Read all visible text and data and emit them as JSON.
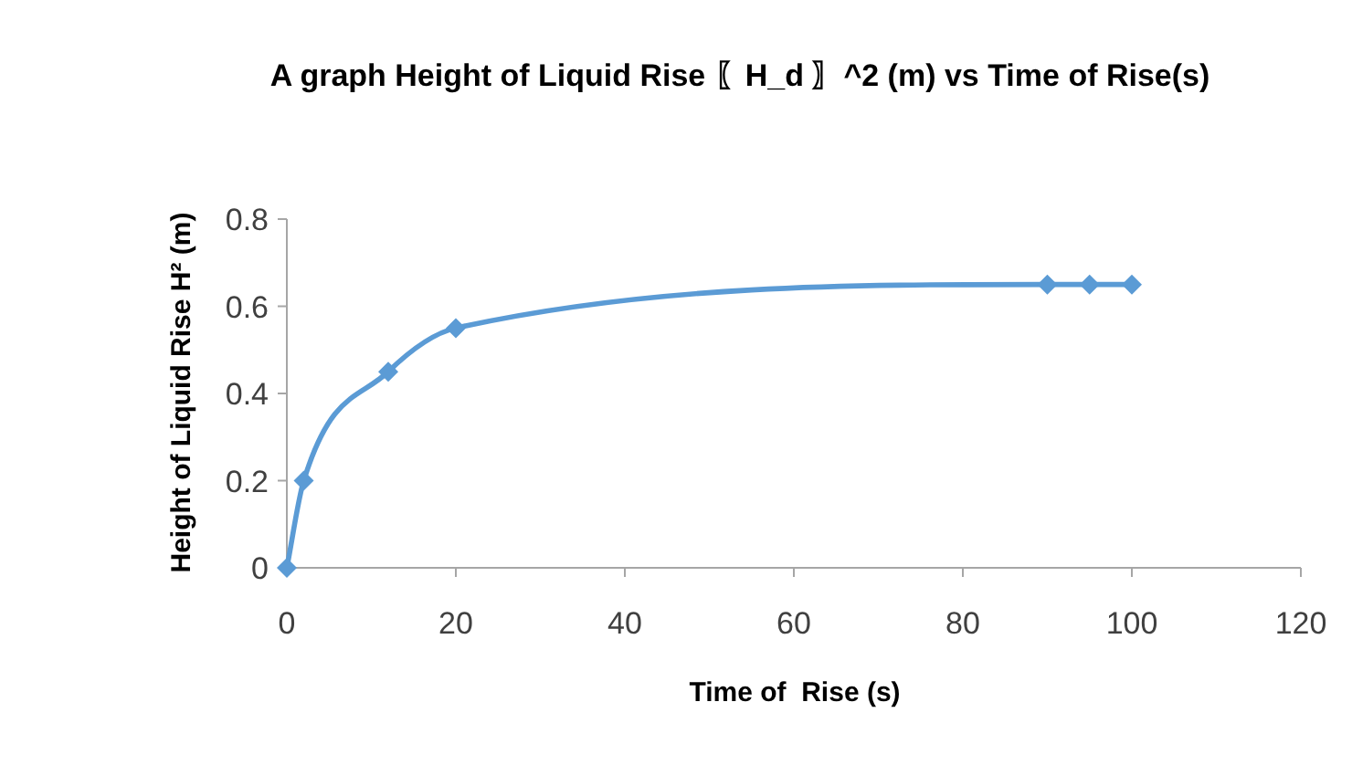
{
  "chart_data": {
    "type": "line",
    "title": "A graph Height of Liquid Rise 〖H_d 〗^2 (m) vs Time of Rise(s)",
    "xlabel": "Time of  Rise (s)",
    "ylabel": "Height of Liquid Rise H² (m)",
    "x": [
      0,
      2,
      12,
      20,
      90,
      95,
      100
    ],
    "series": [
      {
        "color": "#5b9bd5",
        "values": [
          0,
          0.2,
          0.45,
          0.55,
          0.65,
          0.65,
          0.65
        ]
      }
    ],
    "xlim": [
      0,
      120
    ],
    "xticks": [
      0,
      20,
      40,
      60,
      80,
      100,
      120
    ],
    "ylim": [
      0,
      0.8
    ],
    "yticks": [
      0,
      0.2,
      0.4,
      0.6,
      0.8
    ],
    "grid": false,
    "marker": "diamond",
    "line_style": "solid"
  }
}
